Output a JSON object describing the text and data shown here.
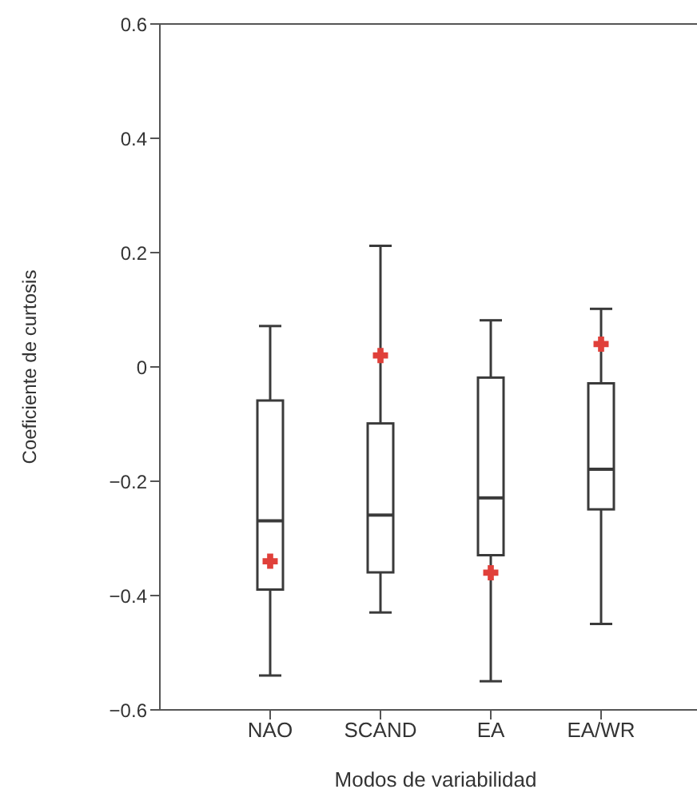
{
  "chart_data": {
    "type": "box",
    "xlabel": "Modos de variabilidad",
    "ylabel": "Coeficiente de curtosis",
    "categories": [
      "NAO",
      "SCAND",
      "EA",
      "EA/WR"
    ],
    "ylim": [
      -0.6,
      0.6
    ],
    "yticks": [
      -0.6,
      -0.4,
      -0.2,
      0,
      0.2,
      0.4,
      0.6
    ],
    "series": [
      {
        "type": "box",
        "color": "#3a3a3a",
        "boxes": [
          {
            "low": -0.54,
            "q1": -0.39,
            "median": -0.27,
            "q3": -0.06,
            "high": 0.07
          },
          {
            "low": -0.43,
            "q1": -0.36,
            "median": -0.26,
            "q3": -0.1,
            "high": 0.21
          },
          {
            "low": -0.55,
            "q1": -0.33,
            "median": -0.23,
            "q3": -0.02,
            "high": 0.08
          },
          {
            "low": -0.45,
            "q1": -0.25,
            "median": -0.18,
            "q3": -0.03,
            "high": 0.1
          }
        ]
      },
      {
        "type": "scatter",
        "x": [
          "NAO",
          "SCAND",
          "EA",
          "EA/WR"
        ],
        "values": [
          -0.34,
          0.02,
          -0.36,
          0.04
        ],
        "color": "#e0403a",
        "marker": "cross"
      }
    ]
  }
}
